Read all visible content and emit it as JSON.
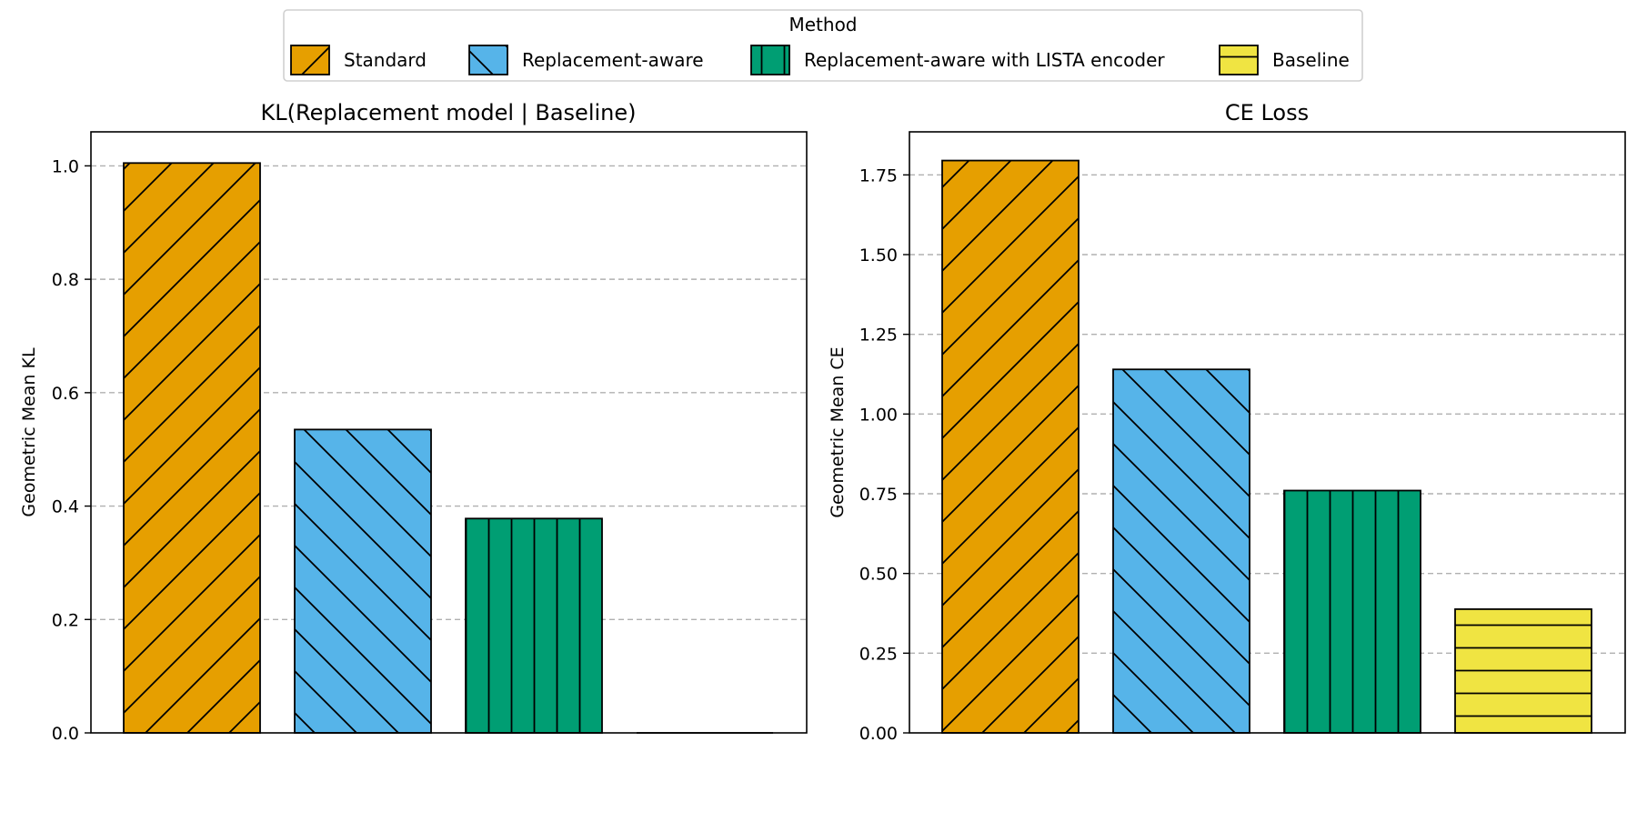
{
  "legend": {
    "title": "Method",
    "entries": [
      {
        "label": "Standard",
        "color": "#E69F00",
        "hatch": "forward-diagonal"
      },
      {
        "label": "Replacement-aware",
        "color": "#56B4E9",
        "hatch": "back-diagonal"
      },
      {
        "label": "Replacement-aware with LISTA encoder",
        "color": "#009E73",
        "hatch": "vertical"
      },
      {
        "label": "Baseline",
        "color": "#F0E442",
        "hatch": "horizontal"
      }
    ]
  },
  "chart_data": [
    {
      "type": "bar",
      "title": "KL(Replacement model | Baseline)",
      "xlabel": "",
      "ylabel": "Geometric Mean KL",
      "categories": [
        "Standard",
        "Replacement-aware",
        "Replacement-aware with LISTA encoder",
        "Baseline"
      ],
      "values": [
        1.005,
        0.535,
        0.378,
        0.0
      ],
      "ylim": [
        0,
        1.06
      ],
      "yticks": [
        0.0,
        0.2,
        0.4,
        0.6,
        0.8,
        1.0
      ],
      "ytick_labels": [
        "0.0",
        "0.2",
        "0.4",
        "0.6",
        "0.8",
        "1.0"
      ],
      "grid": "y-dashed"
    },
    {
      "type": "bar",
      "title": "CE Loss",
      "xlabel": "",
      "ylabel": "Geometric Mean CE",
      "categories": [
        "Standard",
        "Replacement-aware",
        "Replacement-aware with LISTA encoder",
        "Baseline"
      ],
      "values": [
        1.795,
        1.14,
        0.76,
        0.388
      ],
      "ylim": [
        0,
        1.885
      ],
      "yticks": [
        0.0,
        0.25,
        0.5,
        0.75,
        1.0,
        1.25,
        1.5,
        1.75
      ],
      "ytick_labels": [
        "0.00",
        "0.25",
        "0.50",
        "0.75",
        "1.00",
        "1.25",
        "1.50",
        "1.75"
      ],
      "grid": "y-dashed"
    }
  ]
}
